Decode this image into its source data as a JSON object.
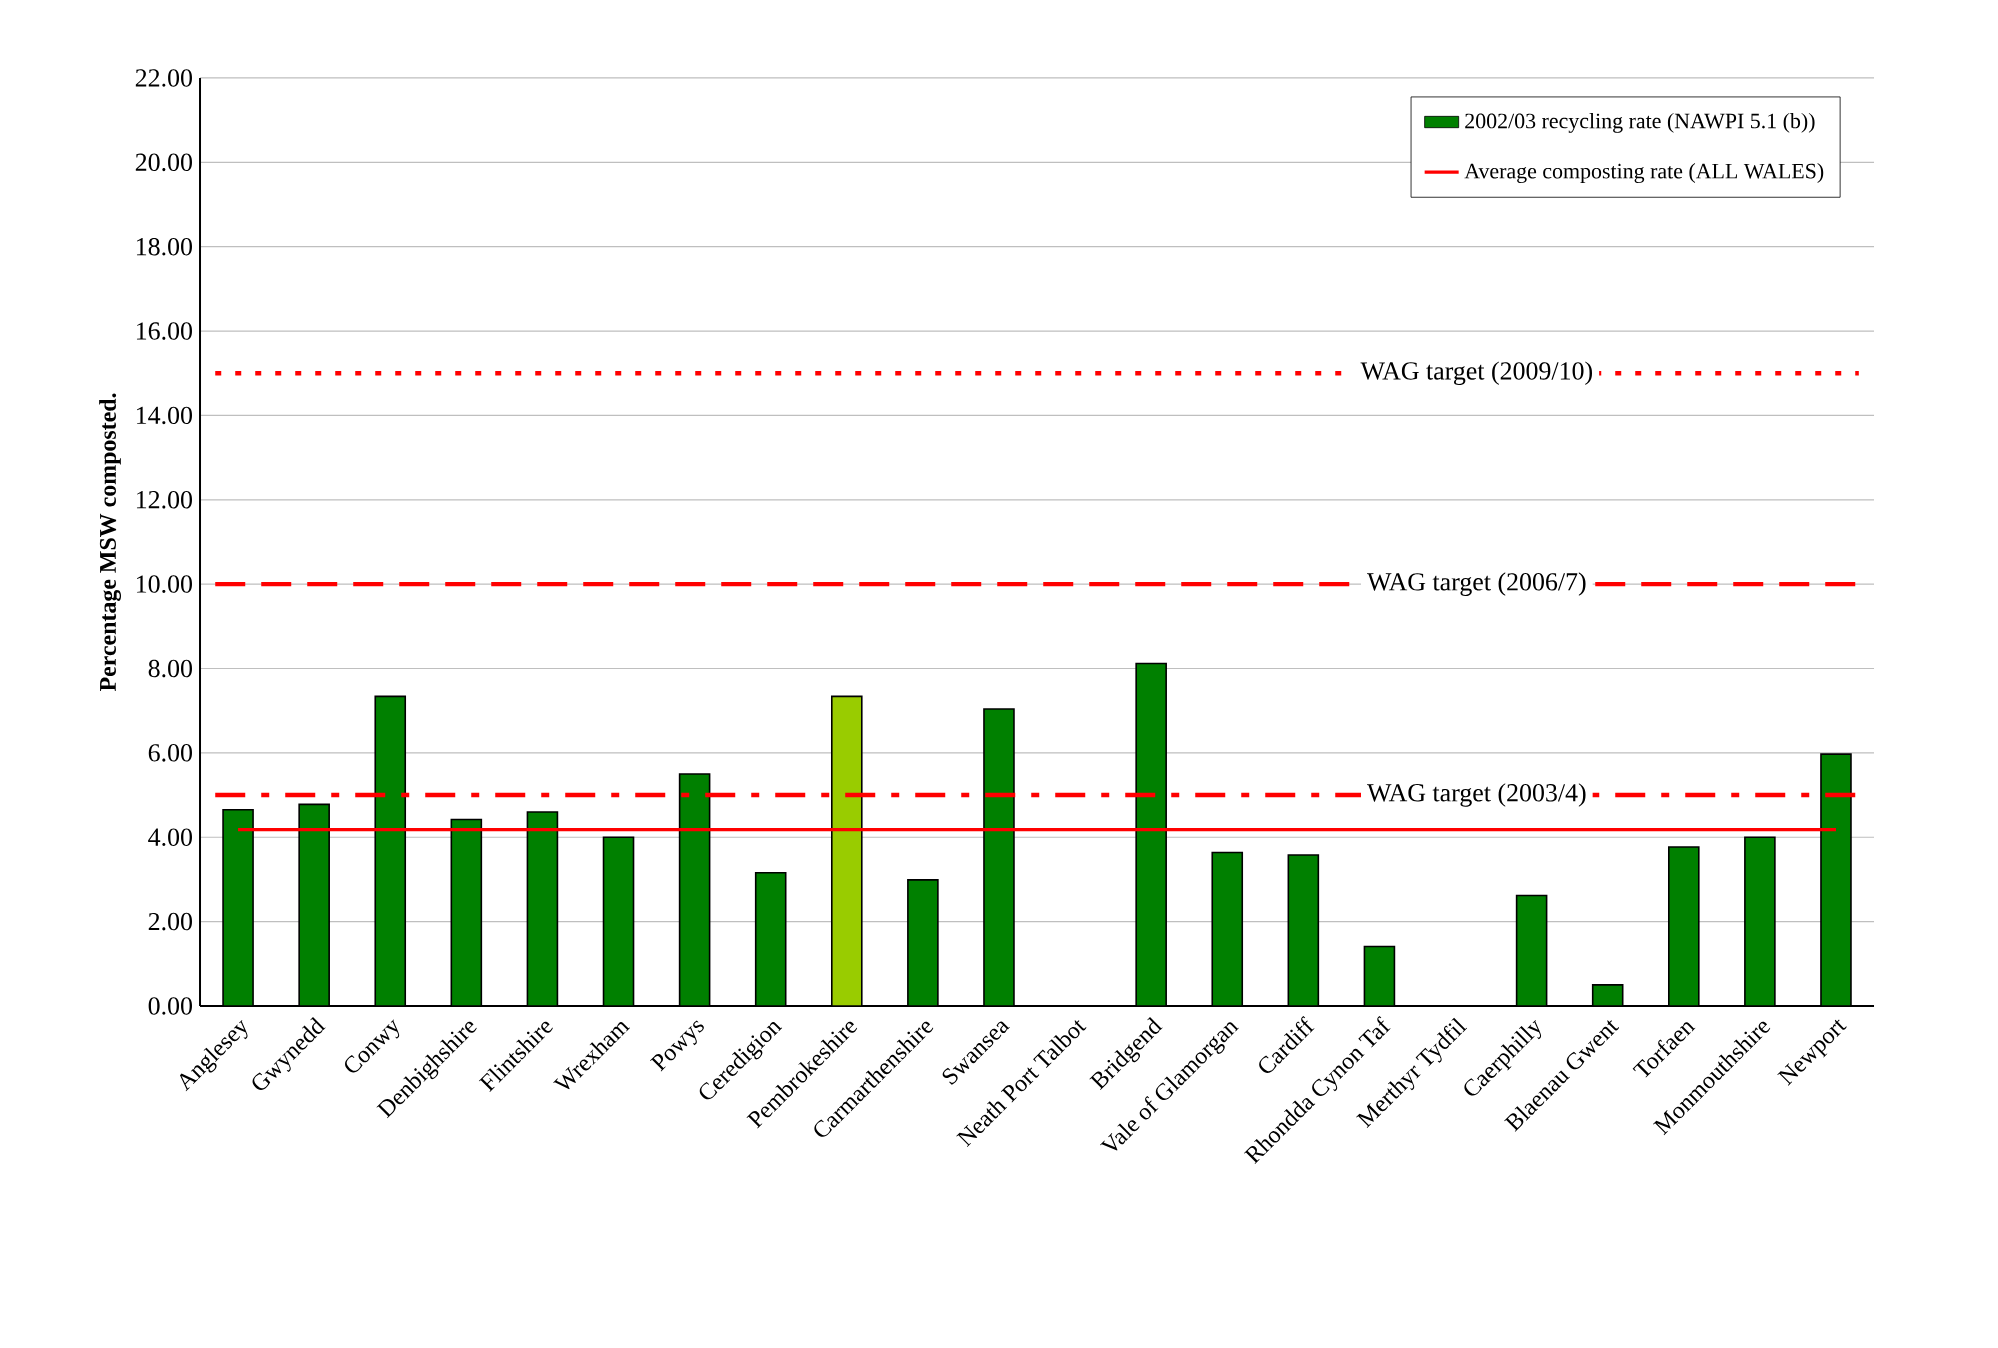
{
  "chart_data": {
    "type": "bar",
    "ylabel": "Percentage MSW composted.",
    "categories": [
      "Anglesey",
      "Gwynedd",
      "Conwy",
      "Denbighshire",
      "Flintshire",
      "Wrexham",
      "Powys",
      "Ceredigion",
      "Pembrokeshire",
      "Carmarthenshire",
      "Swansea",
      "Neath Port Talbot",
      "Bridgend",
      "Vale of Glamorgan",
      "Cardiff",
      "Rhondda Cynon Taf",
      "Merthyr Tydfil",
      "Caerphilly",
      "Blaenau Gwent",
      "Torfaen",
      "Monmouthshire",
      "Newport"
    ],
    "series": [
      {
        "name": "2002/03 recycling rate (NAWPI 5.1 (b))",
        "color": "#008000",
        "colors": [
          "#008000",
          "#008000",
          "#008000",
          "#008000",
          "#008000",
          "#008000",
          "#008000",
          "#008000",
          "#99cc00",
          "#008000",
          "#008000",
          "#008000",
          "#008000",
          "#008000",
          "#008000",
          "#008000",
          "#008000",
          "#008000",
          "#008000",
          "#008000",
          "#008000",
          "#008000"
        ],
        "values": [
          4.65,
          4.78,
          7.34,
          4.42,
          4.6,
          4.0,
          5.5,
          3.16,
          7.34,
          2.99,
          7.04,
          null,
          8.12,
          3.64,
          3.58,
          1.41,
          null,
          2.62,
          0.5,
          3.77,
          4.0,
          5.97
        ]
      },
      {
        "name": "Average composting rate (ALL WALES)",
        "type": "line",
        "color": "#ff0000",
        "line_style": "solid",
        "values": [
          4.18,
          4.18,
          4.18,
          4.18,
          4.18,
          4.18,
          4.18,
          4.18,
          4.18,
          4.18,
          4.18,
          4.18,
          4.18,
          4.18,
          4.18,
          4.18,
          4.18,
          4.18,
          4.18,
          4.18,
          4.18,
          4.18
        ]
      }
    ],
    "ylim": [
      0,
      22
    ],
    "yticks": [
      {
        "value": 0,
        "label": "0.00"
      },
      {
        "value": 2,
        "label": "2.00"
      },
      {
        "value": 4,
        "label": "4.00"
      },
      {
        "value": 6,
        "label": "6.00"
      },
      {
        "value": 8,
        "label": "8.00"
      },
      {
        "value": 10,
        "label": "10.00"
      },
      {
        "value": 12,
        "label": "12.00"
      },
      {
        "value": 14,
        "label": "14.00"
      },
      {
        "value": 16,
        "label": "16.00"
      },
      {
        "value": 18,
        "label": "18.00"
      },
      {
        "value": 20,
        "label": "20.00"
      },
      {
        "value": 22,
        "label": "22.00"
      }
    ],
    "ref_lines": [
      {
        "axis": "y",
        "value": 15,
        "label": "WAG target (2009/10)",
        "color": "#ff0000",
        "line_style": "dotted"
      },
      {
        "axis": "y",
        "value": 10,
        "label": "WAG target (2006/7)",
        "color": "#ff0000",
        "line_style": "dashed"
      },
      {
        "axis": "y",
        "value": 5,
        "label": "WAG target (2003/4)",
        "color": "#ff0000",
        "line_style": "dashdot"
      }
    ],
    "grid": "y",
    "legend": "top right",
    "marker": "none"
  }
}
